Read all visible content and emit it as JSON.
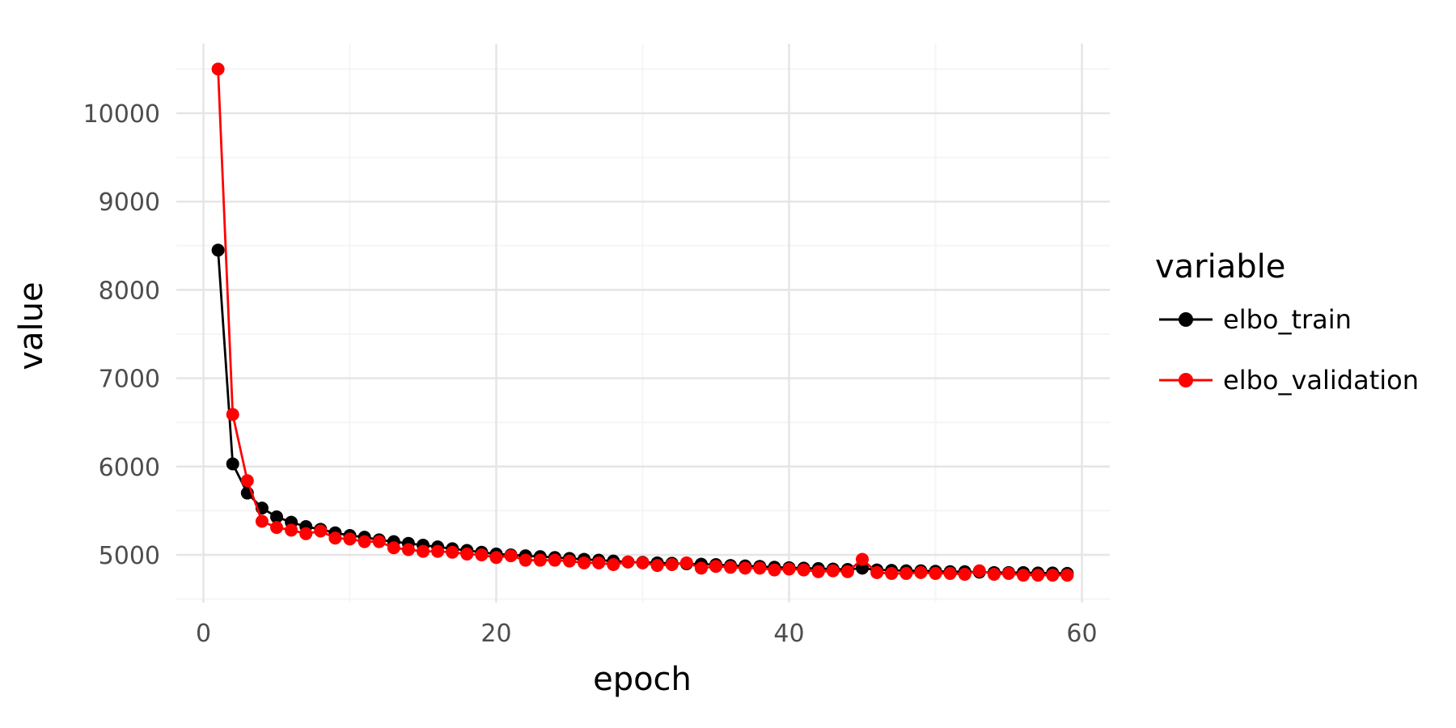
{
  "chart_data": {
    "type": "line",
    "xlabel": "epoch",
    "ylabel": "value",
    "xlim": [
      -2,
      62
    ],
    "ylim": [
      4500,
      10600
    ],
    "x_ticks": [
      0,
      20,
      40,
      60
    ],
    "y_ticks": [
      5000,
      6000,
      7000,
      8000,
      9000,
      10000
    ],
    "x_tick_labels": [
      "0",
      "20",
      "40",
      "60"
    ],
    "y_tick_labels": [
      "5000",
      "6000",
      "7000",
      "8000",
      "9000",
      "10000"
    ],
    "grid": true,
    "legend": {
      "title": "variable",
      "placement": "right"
    },
    "x": [
      1,
      2,
      3,
      4,
      5,
      6,
      7,
      8,
      9,
      10,
      11,
      12,
      13,
      14,
      15,
      16,
      17,
      18,
      19,
      20,
      21,
      22,
      23,
      24,
      25,
      26,
      27,
      28,
      29,
      30,
      31,
      32,
      33,
      34,
      35,
      36,
      37,
      38,
      39,
      40,
      41,
      42,
      43,
      44,
      45,
      46,
      47,
      48,
      49,
      50,
      51,
      52,
      53,
      54,
      55,
      56,
      57,
      58,
      59
    ],
    "series": [
      {
        "name": "elbo_train",
        "color": "#000000",
        "values": [
          8450,
          6030,
          5700,
          5530,
          5430,
          5370,
          5320,
          5290,
          5250,
          5220,
          5200,
          5170,
          5150,
          5130,
          5110,
          5090,
          5070,
          5050,
          5030,
          5010,
          5000,
          4990,
          4980,
          4970,
          4960,
          4950,
          4940,
          4930,
          4920,
          4915,
          4910,
          4905,
          4900,
          4895,
          4890,
          4880,
          4875,
          4870,
          4860,
          4855,
          4850,
          4845,
          4840,
          4835,
          4850,
          4830,
          4825,
          4820,
          4820,
          4815,
          4810,
          4810,
          4805,
          4800,
          4800,
          4800,
          4795,
          4795,
          4790
        ]
      },
      {
        "name": "elbo_validation",
        "color": "#ff0000",
        "values": [
          10500,
          6590,
          5840,
          5380,
          5310,
          5280,
          5240,
          5270,
          5190,
          5180,
          5150,
          5150,
          5080,
          5060,
          5040,
          5040,
          5030,
          5010,
          5000,
          4970,
          4990,
          4940,
          4940,
          4940,
          4930,
          4910,
          4910,
          4890,
          4920,
          4910,
          4880,
          4890,
          4910,
          4850,
          4870,
          4860,
          4850,
          4850,
          4830,
          4840,
          4830,
          4810,
          4820,
          4810,
          4950,
          4800,
          4790,
          4790,
          4800,
          4790,
          4790,
          4780,
          4820,
          4780,
          4790,
          4770,
          4770,
          4770,
          4770
        ]
      }
    ]
  }
}
